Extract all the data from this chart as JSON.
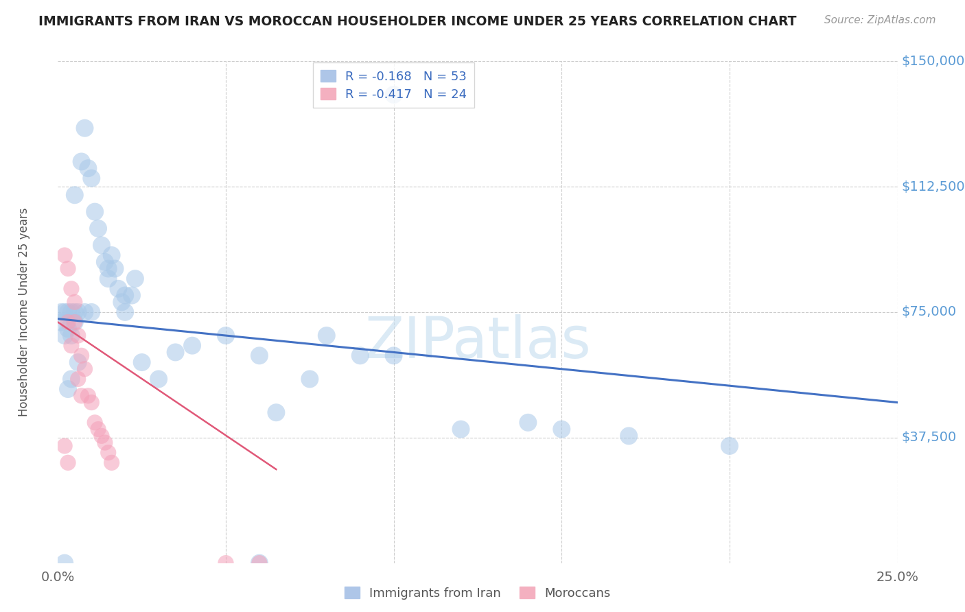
{
  "title": "IMMIGRANTS FROM IRAN VS MOROCCAN HOUSEHOLDER INCOME UNDER 25 YEARS CORRELATION CHART",
  "source": "Source: ZipAtlas.com",
  "ylabel_text": "Householder Income Under 25 years",
  "xlim": [
    0.0,
    0.25
  ],
  "ylim": [
    0,
    150000
  ],
  "yticks": [
    37500,
    75000,
    112500,
    150000
  ],
  "ytick_labels": [
    "$37,500",
    "$75,000",
    "$112,500",
    "$150,000"
  ],
  "xtick_labels": [
    "0.0%",
    "25.0%"
  ],
  "xticks": [
    0.0,
    0.25
  ],
  "iran_color": "#a8c8e8",
  "moroccan_color": "#f4a0b8",
  "iran_line_color": "#4472c4",
  "moroccan_line_color": "#e05878",
  "watermark": "ZIPatlas",
  "iran_points": [
    [
      0.001,
      75000
    ],
    [
      0.001,
      72000
    ],
    [
      0.002,
      75000
    ],
    [
      0.002,
      68000
    ],
    [
      0.003,
      75000
    ],
    [
      0.003,
      70000
    ],
    [
      0.004,
      75000
    ],
    [
      0.004,
      68000
    ],
    [
      0.005,
      75000
    ],
    [
      0.005,
      72000
    ],
    [
      0.006,
      75000
    ],
    [
      0.007,
      120000
    ],
    [
      0.008,
      130000
    ],
    [
      0.009,
      118000
    ],
    [
      0.01,
      115000
    ],
    [
      0.011,
      105000
    ],
    [
      0.012,
      100000
    ],
    [
      0.013,
      95000
    ],
    [
      0.014,
      90000
    ],
    [
      0.015,
      88000
    ],
    [
      0.015,
      85000
    ],
    [
      0.016,
      92000
    ],
    [
      0.017,
      88000
    ],
    [
      0.018,
      82000
    ],
    [
      0.019,
      78000
    ],
    [
      0.02,
      80000
    ],
    [
      0.022,
      80000
    ],
    [
      0.023,
      85000
    ],
    [
      0.025,
      60000
    ],
    [
      0.03,
      55000
    ],
    [
      0.035,
      63000
    ],
    [
      0.04,
      65000
    ],
    [
      0.05,
      68000
    ],
    [
      0.06,
      62000
    ],
    [
      0.065,
      45000
    ],
    [
      0.075,
      55000
    ],
    [
      0.08,
      68000
    ],
    [
      0.09,
      62000
    ],
    [
      0.1,
      62000
    ],
    [
      0.12,
      40000
    ],
    [
      0.14,
      42000
    ],
    [
      0.15,
      40000
    ],
    [
      0.17,
      38000
    ],
    [
      0.2,
      35000
    ],
    [
      0.002,
      0
    ],
    [
      0.06,
      0
    ],
    [
      0.1,
      140000
    ],
    [
      0.005,
      110000
    ],
    [
      0.01,
      75000
    ],
    [
      0.003,
      52000
    ],
    [
      0.004,
      55000
    ],
    [
      0.006,
      60000
    ],
    [
      0.008,
      75000
    ],
    [
      0.02,
      75000
    ]
  ],
  "moroccan_points": [
    [
      0.002,
      92000
    ],
    [
      0.003,
      88000
    ],
    [
      0.004,
      82000
    ],
    [
      0.005,
      78000
    ],
    [
      0.005,
      72000
    ],
    [
      0.006,
      68000
    ],
    [
      0.007,
      62000
    ],
    [
      0.008,
      58000
    ],
    [
      0.009,
      50000
    ],
    [
      0.01,
      48000
    ],
    [
      0.011,
      42000
    ],
    [
      0.012,
      40000
    ],
    [
      0.013,
      38000
    ],
    [
      0.014,
      36000
    ],
    [
      0.015,
      33000
    ],
    [
      0.016,
      30000
    ],
    [
      0.002,
      35000
    ],
    [
      0.003,
      30000
    ],
    [
      0.05,
      0
    ],
    [
      0.06,
      0
    ],
    [
      0.003,
      72000
    ],
    [
      0.004,
      65000
    ],
    [
      0.006,
      55000
    ],
    [
      0.007,
      50000
    ]
  ],
  "iran_line_x": [
    0.0,
    0.25
  ],
  "iran_line_y": [
    73000,
    48000
  ],
  "moroccan_line_x": [
    0.0,
    0.065
  ],
  "moroccan_line_y": [
    72000,
    28000
  ]
}
